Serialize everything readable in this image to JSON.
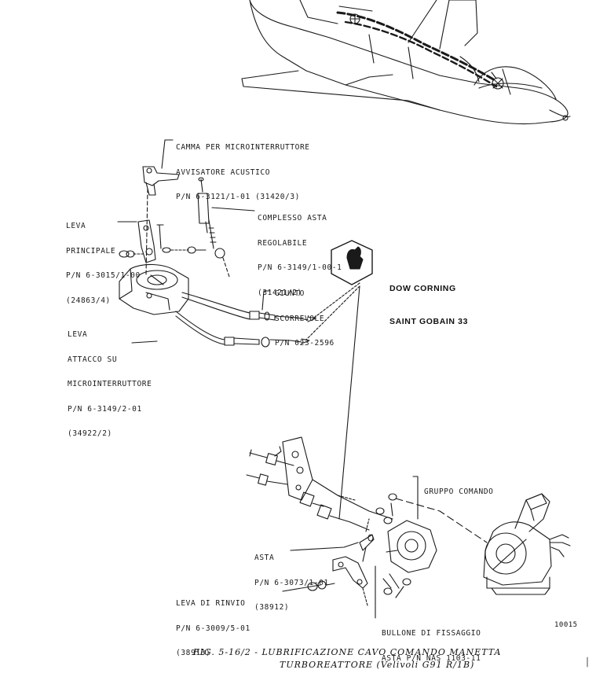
{
  "labels": {
    "camma": {
      "lines": [
        "CAMMA PER MICROINTERRUTTORE",
        "AVVISATORE ACUSTICO",
        "P/N 6-3121/1-01 (31420/3)"
      ]
    },
    "leva_principale": {
      "lines": [
        "LEVA",
        "PRINCIPALE",
        "P/N 6-3015/1-00",
        "(24863/4)"
      ]
    },
    "complesso_asta": {
      "lines": [
        "COMPLESSO ASTA",
        "REGOLABILE",
        "P/N 6-3149/1-00-1",
        "(31421/2)"
      ]
    },
    "giunto": {
      "lines": [
        "GIUNTO",
        "SCORREVOLE",
        "P/N 023-2596"
      ]
    },
    "leva_attacco": {
      "lines": [
        "LEVA",
        "ATTACCO SU",
        "MICROINTERRUTTORE",
        "P/N 6-3149/2-01",
        "(34922/2)"
      ]
    },
    "gruppo_comando": {
      "lines": [
        "GRUPPO COMANDO"
      ]
    },
    "asta": {
      "lines": [
        "ASTA",
        "P/N 6-3073/1-01",
        "(38912)"
      ]
    },
    "leva_rinvio": {
      "lines": [
        "LEVA DI RINVIO",
        "P/N 6-3009/5-01",
        "(38913)"
      ]
    },
    "bullone": {
      "lines": [
        "BULLONE DI FISSAGGIO",
        "ASTA P/N NAS 1103-11"
      ]
    }
  },
  "lubricant": {
    "lines": [
      "DOW CORNING",
      "SAINT GOBAIN 33"
    ],
    "symbol": "grease-hand-icon"
  },
  "reference_number": "10015",
  "caption": {
    "line1": "FIG. 5-16/2 - LUBRIFICAZIONE CAVO COMANDO MANETTA",
    "line2": "TURBOREATTORE (Velivoli G91 R/1B)"
  },
  "colors": {
    "ink": "#1a1a1a",
    "paper": "#ffffff"
  }
}
